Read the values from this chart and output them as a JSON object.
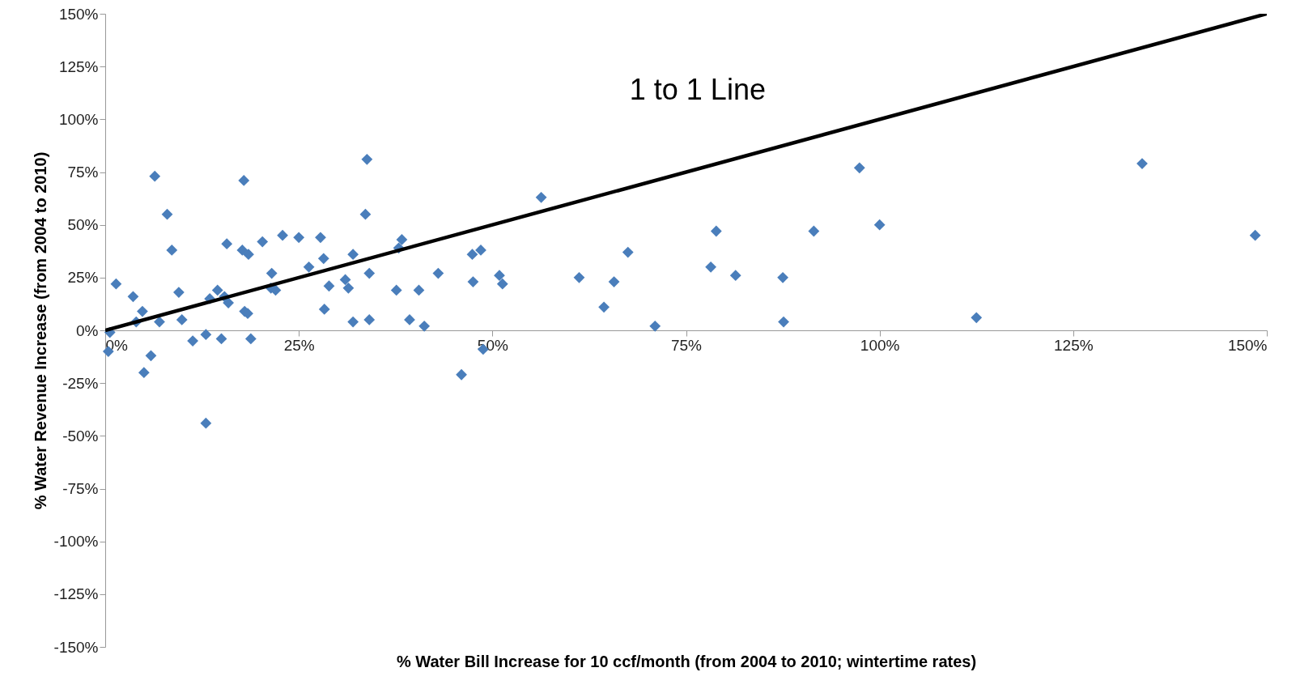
{
  "chart_data": {
    "type": "scatter",
    "xlabel": "% Water Bill Increase for 10 ccf/month (from 2004 to 2010; wintertime rates)",
    "ylabel": "% Water Revenue Increase (from 2004 to 2010)",
    "grid": false,
    "xlim": [
      0,
      150
    ],
    "ylim": [
      -150,
      150
    ],
    "xticks": [
      {
        "value": 0,
        "label": "0%"
      },
      {
        "value": 25,
        "label": "25%"
      },
      {
        "value": 50,
        "label": "50%"
      },
      {
        "value": 75,
        "label": "75%"
      },
      {
        "value": 100,
        "label": "100%"
      },
      {
        "value": 125,
        "label": "125%"
      },
      {
        "value": 150,
        "label": "150%"
      }
    ],
    "yticks": [
      {
        "value": -150,
        "label": "-150%"
      },
      {
        "value": -125,
        "label": "-125%"
      },
      {
        "value": -100,
        "label": "-100%"
      },
      {
        "value": -75,
        "label": "-75%"
      },
      {
        "value": -50,
        "label": "-50%"
      },
      {
        "value": -25,
        "label": "-25%"
      },
      {
        "value": 0,
        "label": "0%"
      },
      {
        "value": 25,
        "label": "25%"
      },
      {
        "value": 50,
        "label": "50%"
      },
      {
        "value": 75,
        "label": "75%"
      },
      {
        "value": 100,
        "label": "100%"
      },
      {
        "value": 125,
        "label": "125%"
      },
      {
        "value": 150,
        "label": "150%"
      }
    ],
    "annotations": [
      "1 to 1 Line"
    ],
    "series": [
      {
        "marker": "diamond",
        "color": "#4a7ebb",
        "x": [
          0.6,
          0.4,
          1.4,
          3.6,
          4,
          4.8,
          5,
          5.9,
          6.4,
          7,
          8,
          8.6,
          9.5,
          9.9,
          11.3,
          13,
          13,
          13.5,
          14.5,
          15,
          15.4,
          15.7,
          15.9,
          17.9,
          17.7,
          18,
          18.4,
          18.5,
          18.8,
          20.3,
          21.5,
          21.4,
          22,
          22.9,
          25,
          26.3,
          27.8,
          28.2,
          28.3,
          28.9,
          31,
          31.4,
          32,
          32,
          33.6,
          33.8,
          34.1,
          34.1,
          37.6,
          37.9,
          38.3,
          39.3,
          40.5,
          41.2,
          43,
          46,
          47.4,
          47.5,
          48.5,
          48.8,
          50.9,
          51.3,
          56.3,
          61.2,
          64.4,
          65.7,
          67.5,
          71,
          78.2,
          78.9,
          81.4,
          87.5,
          87.6,
          91.5,
          97.4,
          100,
          112.5,
          133.9,
          148.5
        ],
        "values": [
          -1,
          -10,
          22,
          16,
          4,
          9,
          -20,
          -12,
          73,
          4,
          55,
          38,
          18,
          5,
          -5,
          -2,
          -44,
          15,
          19,
          -4,
          16,
          41,
          13,
          71,
          38,
          9,
          8,
          36,
          -4,
          42,
          27,
          20,
          19,
          45,
          44,
          30,
          44,
          34,
          10,
          21,
          24,
          20,
          36,
          4,
          55,
          81,
          27,
          5,
          19,
          39,
          43,
          5,
          19,
          2,
          27,
          -21,
          36,
          23,
          38,
          -9,
          26,
          22,
          63,
          25,
          11,
          23,
          37,
          2,
          30,
          47,
          26,
          25,
          4,
          47,
          77,
          50,
          6,
          79,
          45
        ]
      },
      {
        "type": "line",
        "color": "#000000",
        "x": [
          0,
          150
        ],
        "values": [
          0,
          150
        ]
      }
    ]
  }
}
